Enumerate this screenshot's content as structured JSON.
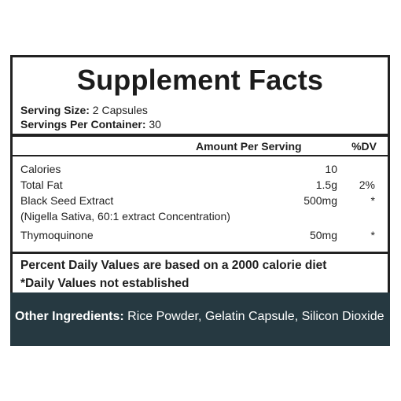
{
  "title": "Supplement Facts",
  "serving": {
    "size_label": "Serving Size:",
    "size_value": " 2 Capsules",
    "per_container_label": "Servings Per Container:",
    "per_container_value": " 30"
  },
  "header": {
    "amount": "Amount Per Serving",
    "dv": "%DV"
  },
  "rows": [
    {
      "name": "Calories",
      "amount": "10",
      "dv": ""
    },
    {
      "name": "Total Fat",
      "amount": "1.5g",
      "dv": "2%"
    },
    {
      "name": "Black Seed Extract",
      "amount": "500mg",
      "dv": "*"
    },
    {
      "name": "(Nigella Sativa, 60:1 extract Concentration)",
      "amount": "",
      "dv": ""
    },
    {
      "name": "Thymoquinone",
      "amount": "50mg",
      "dv": "*"
    }
  ],
  "footnotes": {
    "line1": "Percent Daily Values are based on a 2000 calorie diet",
    "line2": "*Daily Values not established"
  },
  "other_ingredients": {
    "label": "Other Ingredients:",
    "value": " Rice Powder, Gelatin Capsule, Silicon Dioxide"
  },
  "colors": {
    "border": "#222222",
    "ingredients_bg": "#263941",
    "ingredients_text": "#ffffff"
  }
}
